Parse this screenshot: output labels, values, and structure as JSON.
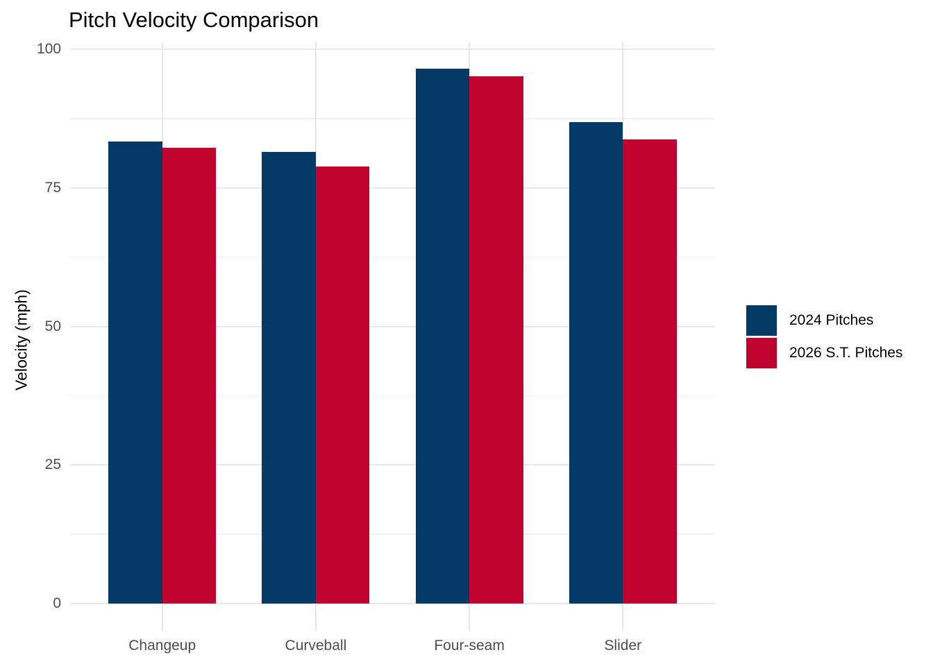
{
  "chart_data": {
    "type": "bar",
    "title": "Pitch Velocity Comparison",
    "categories": [
      "Changeup",
      "Curveball",
      "Four-seam",
      "Slider"
    ],
    "series": [
      {
        "name": "2024 Pitches",
        "color": "#063A66",
        "values": [
          83.4,
          81.5,
          96.5,
          86.8
        ]
      },
      {
        "name": "2026 S.T. Pitches",
        "color": "#C0022E",
        "values": [
          82.2,
          78.9,
          95.1,
          83.7
        ]
      }
    ],
    "xlabel": "",
    "ylabel": "Velocity (mph)",
    "ylim": [
      0,
      100
    ],
    "yticks": [
      0,
      25,
      50,
      75,
      100
    ],
    "yticks_minor": [
      12.5,
      37.5,
      62.5,
      87.5
    ],
    "grid": "horizontal major+minor lines; vertical major lines at category centers; no axis lines; no panel border",
    "legend_position": "right-middle",
    "colors": {
      "background": "#FFFFFF",
      "gridline_major": "#E7E7E7",
      "gridline_minor": "#F1F1F1",
      "axis_text": "#4D4D4D",
      "title_text": "#000000"
    }
  }
}
